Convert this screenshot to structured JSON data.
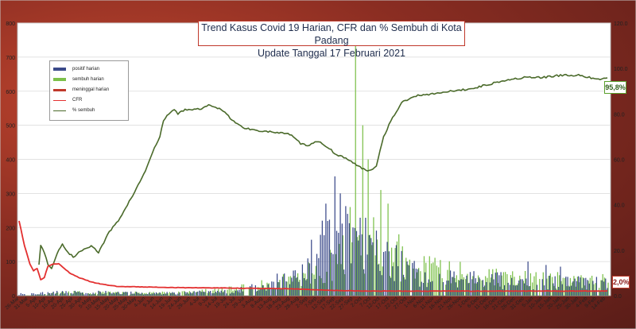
{
  "chart_data": {
    "type": "bar+line",
    "title": "Trend Kasus Covid 19 Harian, CFR dan % Sembuh di Kota Padang",
    "subtitle": "Update Tanggal 17 Februari 2021",
    "y_left_lim": [
      0,
      800
    ],
    "y_left_ticks": [
      "0",
      "100",
      "200",
      "300",
      "400",
      "500",
      "600",
      "700",
      "800"
    ],
    "y_right_lim": [
      0,
      120
    ],
    "y_right_ticks": [
      "0.0",
      "20.0",
      "40.0",
      "60.0",
      "80.0",
      "100.0",
      "120.0"
    ],
    "x_tick_labels": [
      "26-Mar",
      "31-Mar",
      "5-Apr",
      "10-Apr",
      "15-Apr",
      "20-Apr",
      "25-Apr",
      "30-Apr",
      "5-May",
      "10-May",
      "15-May",
      "20-May",
      "25-May",
      "30-May",
      "4-Jun",
      "9-Jun",
      "14-Jun",
      "19-Jun",
      "24-Jun",
      "29-Jun",
      "4-Jul",
      "9-Jul",
      "14-Jul",
      "19-Jul",
      "24-Jul",
      "29-Jul",
      "3-Aug",
      "8-Aug",
      "13-Aug",
      "18-Aug",
      "23-Aug",
      "28-Aug",
      "2-Sep",
      "7-Sep",
      "12-Sep",
      "17-Sep",
      "22-Sep",
      "27-Sep",
      "2-Oct",
      "7-Oct",
      "12-Oct",
      "17-Oct",
      "22-Oct",
      "27-Oct",
      "1-Nov",
      "6-Nov",
      "11-Nov",
      "16-Nov",
      "21-Nov",
      "26-Nov",
      "1-Dec",
      "6-Dec",
      "11-Dec",
      "16-Dec",
      "21-Dec",
      "26-Dec",
      "31-Dec",
      "5-Jan",
      "10-Jan",
      "15-Jan",
      "20-Jan",
      "25-Jan",
      "30-Jan",
      "4-Feb",
      "9-Feb",
      "14-Feb"
    ],
    "grid": "horizontal",
    "legend_placement": "top-left",
    "series": [
      {
        "name": "positif harian",
        "kind": "bar",
        "axis": "left",
        "color": "#3b4a8a",
        "knots": [
          [
            0,
            5
          ],
          [
            14,
            10
          ],
          [
            30,
            10
          ],
          [
            60,
            10
          ],
          [
            90,
            8
          ],
          [
            120,
            15
          ],
          [
            135,
            30
          ],
          [
            150,
            60
          ],
          [
            160,
            110
          ],
          [
            170,
            160
          ],
          [
            180,
            190
          ],
          [
            190,
            170
          ],
          [
            200,
            130
          ],
          [
            210,
            100
          ],
          [
            220,
            70
          ],
          [
            240,
            55
          ],
          [
            260,
            50
          ],
          [
            280,
            45
          ],
          [
            300,
            40
          ],
          [
            326,
            40
          ]
        ],
        "peaks": [
          [
            175,
            350
          ],
          [
            178,
            300
          ],
          [
            170,
            270
          ],
          [
            182,
            240
          ],
          [
            168,
            220
          ],
          [
            185,
            200
          ],
          [
            190,
            180
          ],
          [
            205,
            130
          ],
          [
            282,
            100
          ],
          [
            292,
            90
          ],
          [
            300,
            85
          ]
        ]
      },
      {
        "name": "sembuh harian",
        "kind": "bar",
        "axis": "left",
        "color": "#7cc04a",
        "knots": [
          [
            0,
            0
          ],
          [
            30,
            10
          ],
          [
            60,
            8
          ],
          [
            90,
            10
          ],
          [
            120,
            20
          ],
          [
            140,
            40
          ],
          [
            155,
            60
          ],
          [
            170,
            90
          ],
          [
            180,
            130
          ],
          [
            190,
            150
          ],
          [
            200,
            140
          ],
          [
            210,
            110
          ],
          [
            230,
            80
          ],
          [
            260,
            60
          ],
          [
            290,
            50
          ],
          [
            310,
            45
          ],
          [
            326,
            45
          ]
        ],
        "peaks": [
          [
            186,
            740
          ],
          [
            190,
            500
          ],
          [
            193,
            400
          ],
          [
            200,
            310
          ],
          [
            204,
            270
          ],
          [
            183,
            260
          ],
          [
            196,
            230
          ],
          [
            210,
            180
          ]
        ]
      },
      {
        "name": "meninggal harian",
        "kind": "line",
        "axis": "left",
        "color": "#c0392b"
      },
      {
        "name": "CFR",
        "kind": "line",
        "axis": "right",
        "color": "#e33030",
        "knots": [
          [
            0,
            33
          ],
          [
            3,
            22
          ],
          [
            6,
            14
          ],
          [
            8,
            11
          ],
          [
            10,
            12
          ],
          [
            12,
            7
          ],
          [
            14,
            8
          ],
          [
            16,
            13
          ],
          [
            19,
            14
          ],
          [
            22,
            14
          ],
          [
            25,
            12
          ],
          [
            28,
            10
          ],
          [
            33,
            8
          ],
          [
            40,
            6
          ],
          [
            46,
            5
          ],
          [
            55,
            4
          ],
          [
            70,
            3.8
          ],
          [
            90,
            3.5
          ],
          [
            110,
            3.4
          ],
          [
            130,
            3.2
          ],
          [
            150,
            3
          ],
          [
            170,
            2.4
          ],
          [
            190,
            2
          ],
          [
            210,
            2
          ],
          [
            230,
            2
          ],
          [
            260,
            2
          ],
          [
            300,
            2
          ],
          [
            326,
            2
          ]
        ]
      },
      {
        "name": "% sembuh",
        "kind": "line",
        "axis": "right",
        "color": "#4a6a2a",
        "knots": [
          [
            11,
            14
          ],
          [
            12,
            22
          ],
          [
            14,
            19
          ],
          [
            16,
            14
          ],
          [
            18,
            12
          ],
          [
            20,
            16
          ],
          [
            22,
            20
          ],
          [
            24,
            23
          ],
          [
            26,
            20
          ],
          [
            30,
            17
          ],
          [
            35,
            20
          ],
          [
            40,
            22
          ],
          [
            44,
            19
          ],
          [
            50,
            28
          ],
          [
            55,
            33
          ],
          [
            60,
            40
          ],
          [
            65,
            47
          ],
          [
            70,
            55
          ],
          [
            74,
            63
          ],
          [
            78,
            70
          ],
          [
            80,
            77
          ],
          [
            83,
            80
          ],
          [
            86,
            82
          ],
          [
            88,
            80
          ],
          [
            92,
            82
          ],
          [
            100,
            82
          ],
          [
            106,
            84
          ],
          [
            112,
            82
          ],
          [
            116,
            79
          ],
          [
            120,
            76
          ],
          [
            124,
            74
          ],
          [
            130,
            73
          ],
          [
            140,
            72
          ],
          [
            150,
            71
          ],
          [
            156,
            67
          ],
          [
            160,
            66
          ],
          [
            166,
            68
          ],
          [
            170,
            66
          ],
          [
            176,
            62
          ],
          [
            180,
            61
          ],
          [
            186,
            58
          ],
          [
            190,
            56
          ],
          [
            194,
            55
          ],
          [
            198,
            57
          ],
          [
            200,
            64
          ],
          [
            202,
            70
          ],
          [
            206,
            77
          ],
          [
            212,
            85
          ],
          [
            220,
            88
          ],
          [
            230,
            89
          ],
          [
            240,
            90
          ],
          [
            250,
            91
          ],
          [
            260,
            93
          ],
          [
            270,
            95
          ],
          [
            280,
            96
          ],
          [
            290,
            96
          ],
          [
            300,
            97
          ],
          [
            310,
            97
          ],
          [
            316,
            96
          ],
          [
            322,
            95
          ],
          [
            326,
            95.8
          ]
        ]
      }
    ],
    "badges": {
      "sembuh_last": "95,8%",
      "cfr_last": "2,0%"
    }
  },
  "colors": {
    "accent": "#c0392b",
    "plot_bg": "#ffffff",
    "gridline": "#d9d9d9"
  }
}
